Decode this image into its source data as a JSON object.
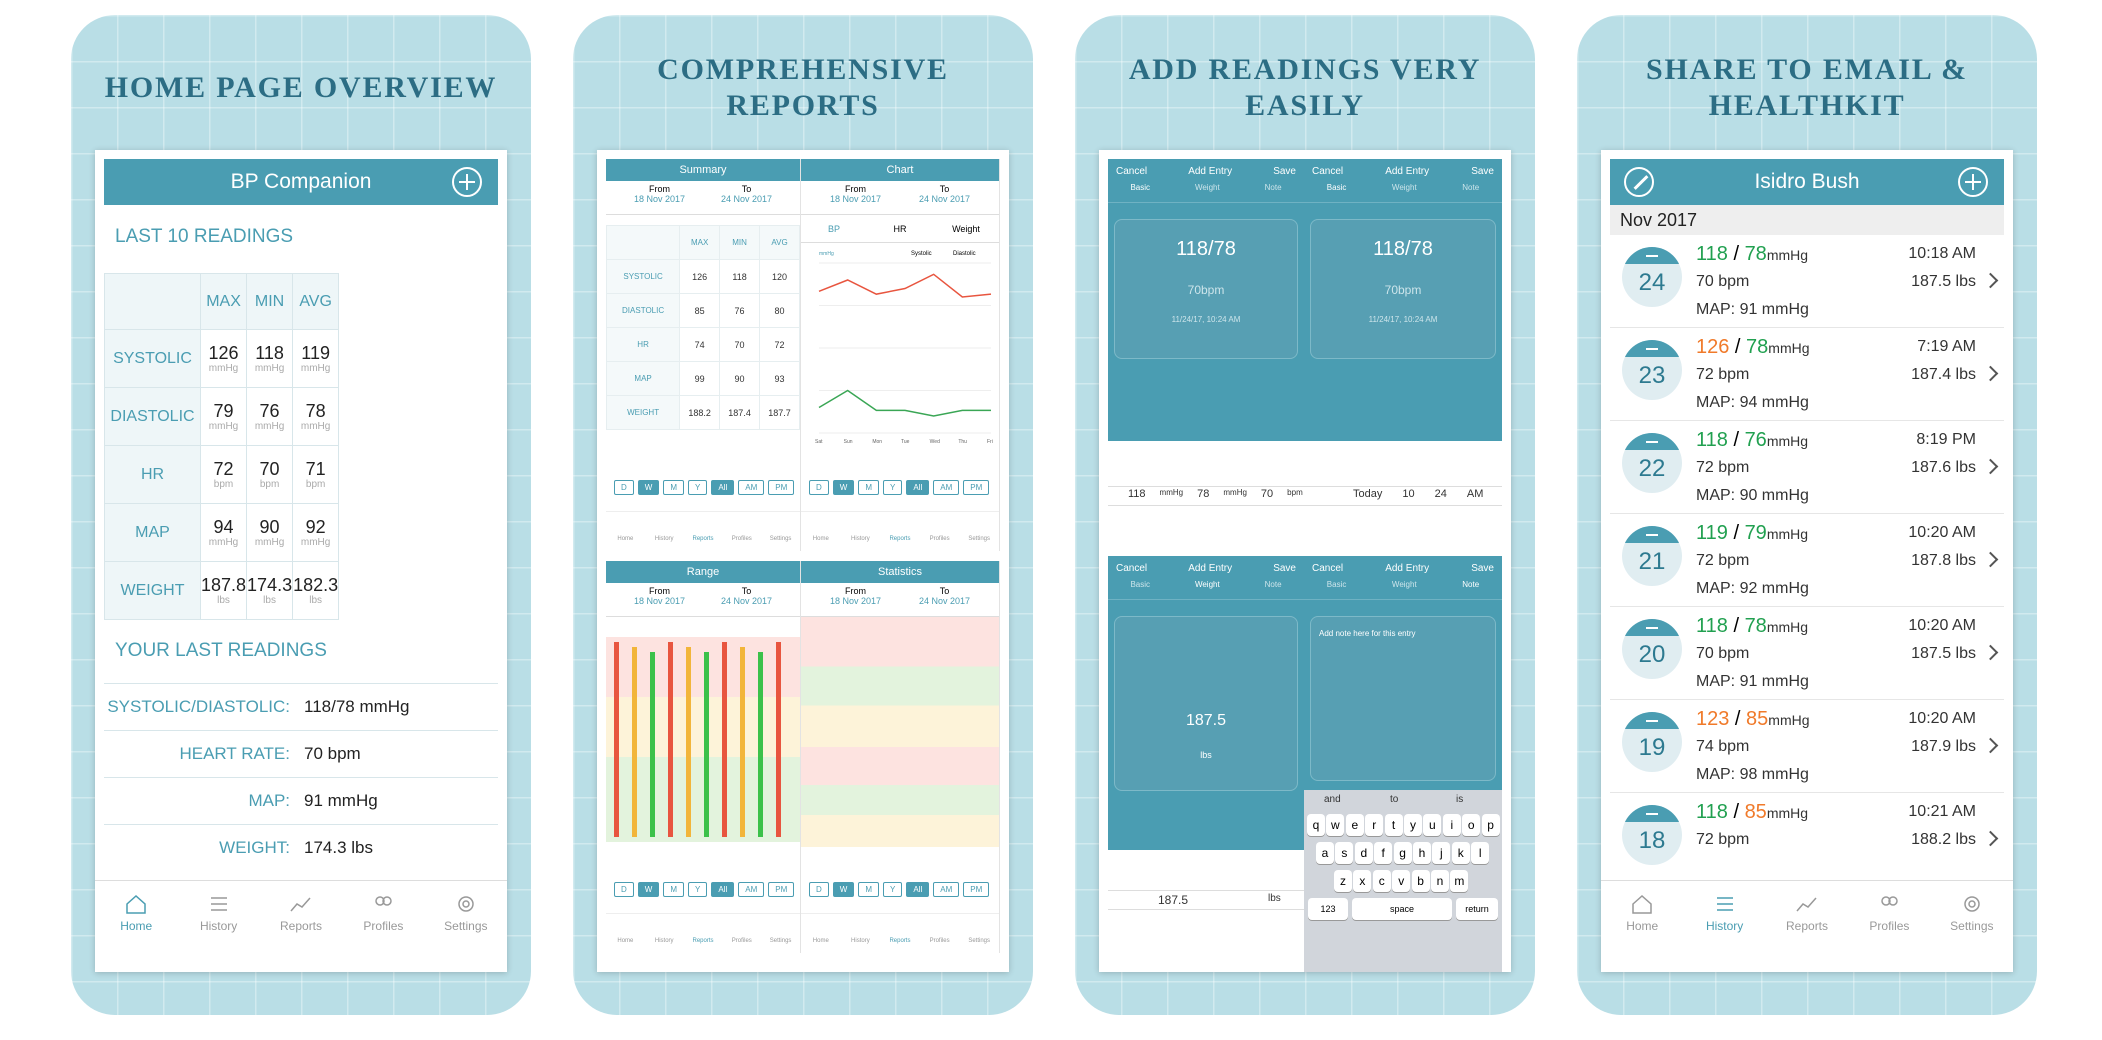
{
  "panels": [
    {
      "title": "HOME PAGE OVERVIEW"
    },
    {
      "title": "COMPREHENSIVE REPORTS"
    },
    {
      "title": "ADD READINGS VERY EASILY"
    },
    {
      "title": "SHARE TO EMAIL & HEALTHKIT"
    }
  ],
  "home": {
    "app_title": "BP Companion",
    "last10": "LAST 10 READINGS",
    "cols": [
      "MAX",
      "MIN",
      "AVG"
    ],
    "rows": [
      {
        "label": "SYSTOLIC",
        "vals": [
          "126",
          "118",
          "119"
        ],
        "unit": "mmHg"
      },
      {
        "label": "DIASTOLIC",
        "vals": [
          "79",
          "76",
          "78"
        ],
        "unit": "mmHg"
      },
      {
        "label": "HR",
        "vals": [
          "72",
          "70",
          "71"
        ],
        "unit": "bpm"
      },
      {
        "label": "MAP",
        "vals": [
          "94",
          "90",
          "92"
        ],
        "unit": "mmHg"
      },
      {
        "label": "WEIGHT",
        "vals": [
          "187.8",
          "174.3",
          "182.3"
        ],
        "unit": "lbs"
      }
    ],
    "your_last": "YOUR LAST READINGS",
    "last": [
      {
        "k": "SYSTOLIC/DIASTOLIC:",
        "v": "118/78 mmHg"
      },
      {
        "k": "HEART RATE:",
        "v": "70 bpm"
      },
      {
        "k": "MAP:",
        "v": "91 mmHg"
      },
      {
        "k": "WEIGHT:",
        "v": "174.3 lbs"
      }
    ]
  },
  "tabs": [
    "Home",
    "History",
    "Reports",
    "Profiles",
    "Settings"
  ],
  "reports": {
    "summary": "Summary",
    "chart": "Chart",
    "range": "Range",
    "statistics": "Statistics",
    "from": "From",
    "to": "To",
    "from_date": "18 Nov 2017",
    "to_date": "24 Nov 2017",
    "cols": [
      "MAX",
      "MIN",
      "AVG"
    ],
    "rows": [
      {
        "l": "SYSTOLIC",
        "v": [
          "126",
          "118",
          "120"
        ]
      },
      {
        "l": "DIASTOLIC",
        "v": [
          "85",
          "76",
          "80"
        ]
      },
      {
        "l": "HR",
        "v": [
          "74",
          "70",
          "72"
        ]
      },
      {
        "l": "MAP",
        "v": [
          "99",
          "90",
          "93"
        ]
      },
      {
        "l": "WEIGHT",
        "v": [
          "188.2",
          "187.4",
          "187.7"
        ]
      }
    ],
    "chart_tabs": [
      "BP",
      "HR",
      "Weight"
    ],
    "seg": [
      "D",
      "W",
      "M",
      "Y",
      "All",
      "AM",
      "PM"
    ]
  },
  "chart_data": {
    "type": "line",
    "categories": [
      "Sat",
      "Sun",
      "Mon",
      "Tue",
      "Wed",
      "Thu",
      "Fri"
    ],
    "series": [
      {
        "name": "Systolic",
        "values": [
          120,
          124,
          119,
          121,
          126,
          118,
          119
        ]
      },
      {
        "name": "Diastolic",
        "values": [
          79,
          85,
          78,
          78,
          76,
          78,
          78
        ]
      }
    ],
    "ylabel": "mmHg",
    "ylim": [
      70,
      130
    ]
  },
  "add": {
    "cancel": "Cancel",
    "title": "Add Entry",
    "save": "Save",
    "tabs": [
      "Basic",
      "Weight",
      "Note"
    ],
    "bp": "118/78",
    "hr": "70",
    "hr_unit": "bpm",
    "date": "11/24/17, 10:24 AM",
    "weight": "187.5",
    "weight_unit": "lbs",
    "note_ph": "Add note here for this entry",
    "picker": [
      "118",
      "mmHg",
      "78",
      "mmHg",
      "70",
      "bpm"
    ],
    "date_picker": [
      "Today",
      "10",
      "24",
      "AM"
    ],
    "keys": [
      "q",
      "w",
      "e",
      "r",
      "t",
      "y",
      "u",
      "i",
      "o",
      "p",
      "a",
      "s",
      "d",
      "f",
      "g",
      "h",
      "j",
      "k",
      "l",
      "z",
      "x",
      "c",
      "v",
      "b",
      "n",
      "m"
    ],
    "suggest": [
      "and",
      "to",
      "is"
    ],
    "space": "space",
    "ret": "return",
    "num": "123"
  },
  "history": {
    "name": "Isidro Bush",
    "month": "Nov 2017",
    "rows": [
      {
        "day": "24",
        "sys": "118",
        "dia": "78",
        "sc": "gr",
        "dc": "gr",
        "bpm": "70 bpm",
        "map": "MAP: 91 mmHg",
        "time": "10:18 AM",
        "wt": "187.5 lbs"
      },
      {
        "day": "23",
        "sys": "126",
        "dia": "78",
        "sc": "or",
        "dc": "gr",
        "bpm": "72 bpm",
        "map": "MAP: 94 mmHg",
        "time": "7:19 AM",
        "wt": "187.4 lbs"
      },
      {
        "day": "22",
        "sys": "118",
        "dia": "76",
        "sc": "gr",
        "dc": "gr",
        "bpm": "72 bpm",
        "map": "MAP: 90 mmHg",
        "time": "8:19 PM",
        "wt": "187.6 lbs"
      },
      {
        "day": "21",
        "sys": "119",
        "dia": "79",
        "sc": "gr",
        "dc": "gr",
        "bpm": "72 bpm",
        "map": "MAP: 92 mmHg",
        "time": "10:20 AM",
        "wt": "187.8 lbs"
      },
      {
        "day": "20",
        "sys": "118",
        "dia": "78",
        "sc": "gr",
        "dc": "gr",
        "bpm": "70 bpm",
        "map": "MAP: 91 mmHg",
        "time": "10:20 AM",
        "wt": "187.5 lbs"
      },
      {
        "day": "19",
        "sys": "123",
        "dia": "85",
        "sc": "or",
        "dc": "or",
        "bpm": "74 bpm",
        "map": "MAP: 98 mmHg",
        "time": "10:20 AM",
        "wt": "187.9 lbs"
      },
      {
        "day": "18",
        "sys": "118",
        "dia": "85",
        "sc": "gr",
        "dc": "or",
        "bpm": "72 bpm",
        "map": "",
        "time": "10:21 AM",
        "wt": "188.2 lbs"
      }
    ],
    "unit": "mmHg"
  }
}
